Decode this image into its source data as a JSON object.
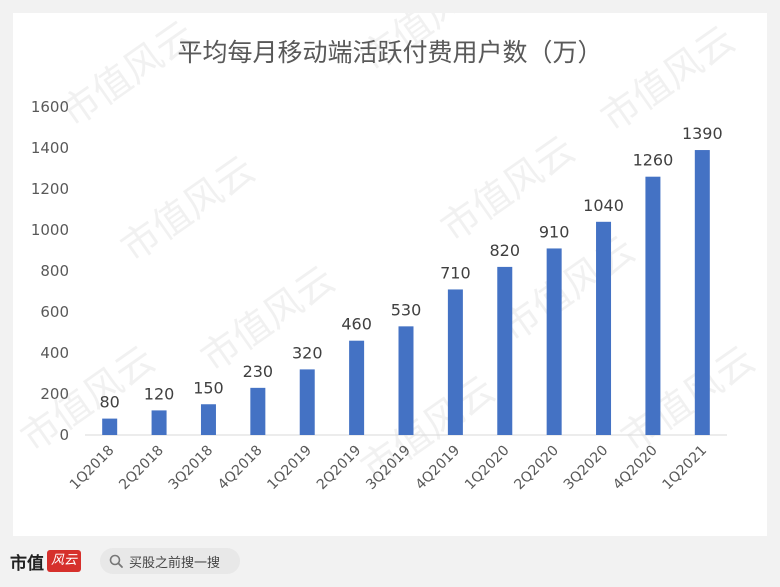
{
  "brand": {
    "name": "市值",
    "logo_text": "风云"
  },
  "search": {
    "text": "买股之前搜一搜"
  },
  "watermark": "市值风云",
  "colors": {
    "bar": "#4472c4",
    "card": "#ffffff",
    "background": "#f2f2f2",
    "brand_red": "#d6302c"
  },
  "chart_data": {
    "type": "bar",
    "title": "平均每月移动端活跃付费用户数（万）",
    "categories": [
      "1Q2018",
      "2Q2018",
      "3Q2018",
      "4Q2018",
      "1Q2019",
      "2Q2019",
      "3Q2019",
      "4Q2019",
      "1Q2020",
      "2Q2020",
      "3Q2020",
      "4Q2020",
      "1Q2021"
    ],
    "values": [
      80,
      120,
      150,
      230,
      320,
      460,
      530,
      710,
      820,
      910,
      1040,
      1260,
      1390
    ],
    "ylim": [
      0,
      1600
    ],
    "yticks": [
      0,
      200,
      400,
      600,
      800,
      1000,
      1200,
      1400,
      1600
    ],
    "grid": false,
    "legend": "none",
    "xlabel": "",
    "ylabel": ""
  }
}
